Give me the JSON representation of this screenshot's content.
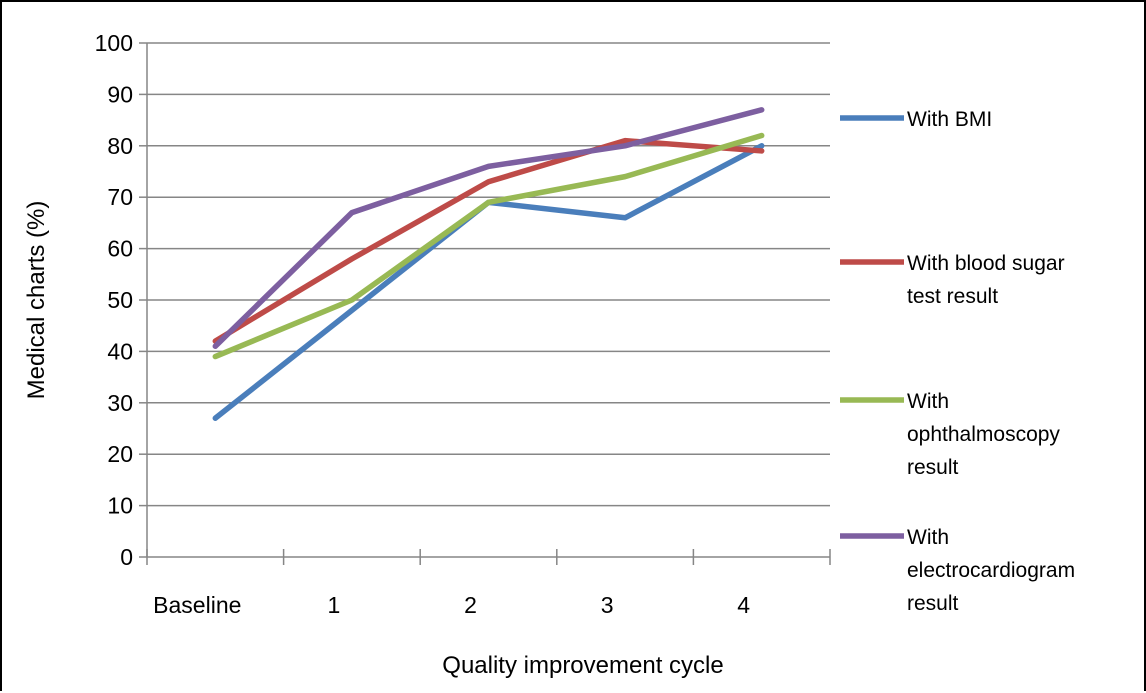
{
  "chart_data": {
    "type": "line",
    "title": "",
    "xlabel": "Quality improvement cycle",
    "ylabel": "Medical charts (%)",
    "categories": [
      "Baseline",
      "1",
      "2",
      "3",
      "4"
    ],
    "ylim": [
      0,
      100
    ],
    "yticks": [
      0,
      10,
      20,
      30,
      40,
      50,
      60,
      70,
      80,
      90,
      100
    ],
    "grid": "horizontal",
    "legend_position": "right",
    "series": [
      {
        "name": "With BMI",
        "legend_lines": [
          "With BMI"
        ],
        "color": "#4a7ebb",
        "values": [
          27,
          48,
          69,
          66,
          80
        ]
      },
      {
        "name": "With blood sugar test result",
        "legend_lines": [
          "With blood sugar",
          "test result"
        ],
        "color": "#be4b48",
        "values": [
          42,
          58,
          73,
          81,
          79
        ]
      },
      {
        "name": "With ophthalmoscopy result",
        "legend_lines": [
          "With",
          "ophthalmoscopy",
          "result"
        ],
        "color": "#98b954",
        "values": [
          39,
          50,
          69,
          74,
          82
        ]
      },
      {
        "name": "With electrocardiogram result",
        "legend_lines": [
          "With",
          "electrocardiogram",
          "result"
        ],
        "color": "#7d5fa0",
        "values": [
          41,
          67,
          76,
          80,
          87
        ]
      }
    ]
  }
}
